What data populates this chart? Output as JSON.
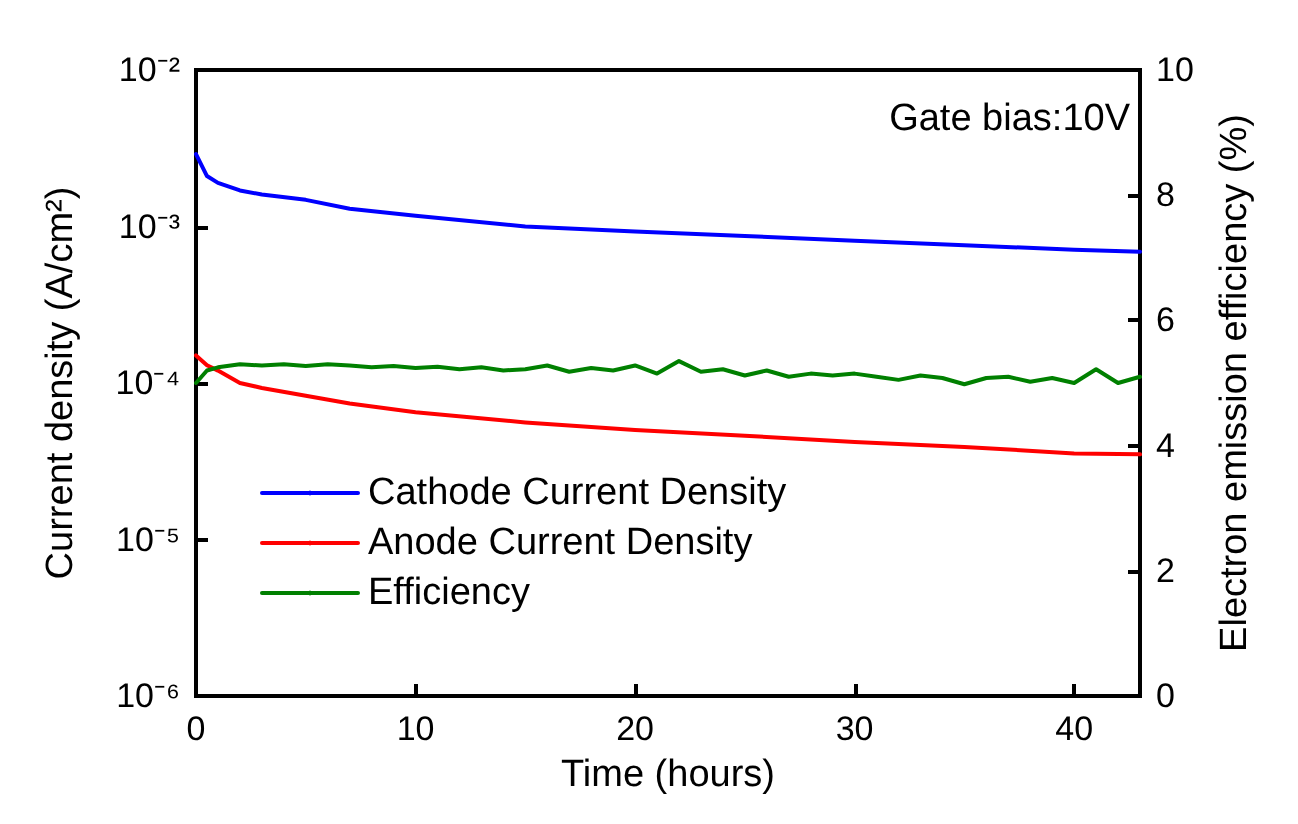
{
  "chart_data": {
    "type": "line",
    "xlabel": "Time (hours)",
    "ylabel": "Current density (A/cm²)",
    "y2label": "Electron emission efficiency (%)",
    "annotations": [
      "Gate bias:10V"
    ],
    "xlim": [
      0,
      43
    ],
    "xticks": [
      0,
      10,
      20,
      30,
      40
    ],
    "ylim": [
      1e-06,
      0.01
    ],
    "yticks": [
      {
        "value": 1e-06,
        "label": "10⁻⁶"
      },
      {
        "value": 1e-05,
        "label": "10⁻⁵"
      },
      {
        "value": 0.0001,
        "label": "10⁻⁴"
      },
      {
        "value": 0.001,
        "label": "10⁻³"
      },
      {
        "value": 0.01,
        "label": "10⁻²"
      }
    ],
    "y2lim": [
      0,
      10
    ],
    "y2ticks": [
      0,
      2,
      4,
      6,
      8,
      10
    ],
    "log": "y",
    "grid": false,
    "legend": "bottom left",
    "marker": "none",
    "line_style": "solid",
    "series": [
      {
        "name": "Cathode Current Density",
        "color": "#0000ff",
        "x": [
          0,
          0.5,
          1,
          2,
          3,
          5,
          7,
          10,
          15,
          20,
          25,
          30,
          35,
          40,
          43
        ],
        "values": [
          0.0029,
          0.0021,
          0.0019,
          0.0017,
          0.0016,
          0.00148,
          0.0013,
          0.00117,
          0.001,
          0.00093,
          0.00087,
          0.00081,
          0.00076,
          0.00071,
          0.00069
        ]
      },
      {
        "name": "Anode Current Density",
        "color": "#ff0000",
        "x": [
          0,
          0.5,
          1,
          2,
          3,
          5,
          7,
          10,
          15,
          20,
          25,
          30,
          35,
          40,
          43
        ],
        "values": [
          0.00015,
          0.00013,
          0.00012,
          0.0001,
          9.3e-05,
          8.3e-05,
          7.4e-05,
          6.5e-05,
          5.6e-05,
          5e-05,
          4.6e-05,
          4.2e-05,
          3.9e-05,
          3.55e-05,
          3.5e-05
        ]
      },
      {
        "name": "Efficiency",
        "color": "#008000",
        "axis": "y2",
        "x": [
          0,
          0.5,
          1,
          2,
          3,
          4,
          5,
          6,
          7,
          8,
          9,
          10,
          11,
          12,
          13,
          14,
          15,
          16,
          17,
          18,
          19,
          20,
          21,
          22,
          23,
          24,
          25,
          26,
          27,
          28,
          29,
          30,
          31,
          32,
          33,
          34,
          35,
          36,
          37,
          38,
          39,
          40,
          41,
          42,
          43
        ],
        "values": [
          5.0,
          5.2,
          5.25,
          5.3,
          5.28,
          5.3,
          5.27,
          5.3,
          5.28,
          5.25,
          5.27,
          5.24,
          5.26,
          5.22,
          5.25,
          5.2,
          5.22,
          5.28,
          5.18,
          5.24,
          5.2,
          5.28,
          5.15,
          5.35,
          5.18,
          5.22,
          5.12,
          5.2,
          5.1,
          5.15,
          5.12,
          5.15,
          5.1,
          5.05,
          5.12,
          5.08,
          4.98,
          5.08,
          5.1,
          5.02,
          5.08,
          5.0,
          5.22,
          5.0,
          5.1
        ]
      }
    ]
  }
}
